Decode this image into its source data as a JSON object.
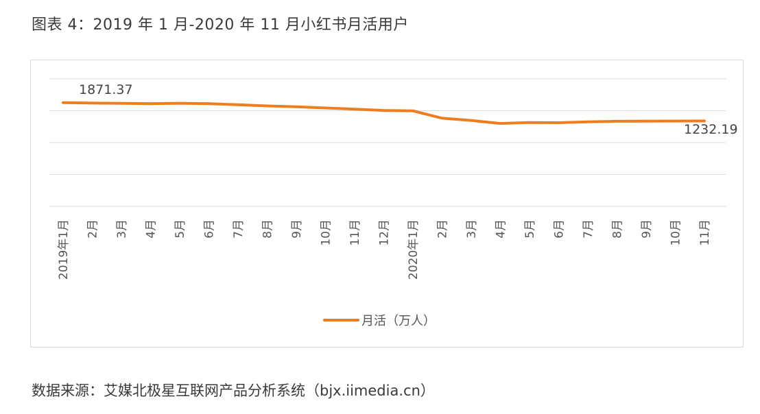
{
  "title": "图表 4：2019 年 1 月-2020 年 11 月小红书月活用户",
  "source": "数据来源：艾媒北极星互联网产品分析系统（bjx.iimedia.cn）",
  "chart_data": {
    "type": "line",
    "categories": [
      "2019年1月",
      "2月",
      "3月",
      "4月",
      "5月",
      "6月",
      "7月",
      "8月",
      "9月",
      "10月",
      "11月",
      "12月",
      "2020年1月",
      "2月",
      "3月",
      "4月",
      "5月",
      "6月",
      "7月",
      "8月",
      "9月",
      "10月",
      "11月"
    ],
    "series": [
      {
        "name": "月活（万人）",
        "color": "#ee7d1f",
        "values": [
          1871.37,
          1862,
          1858,
          1852,
          1860,
          1852,
          1832,
          1812,
          1796,
          1774,
          1754,
          1730,
          1722,
          1590,
          1550,
          1495,
          1512,
          1508,
          1523,
          1534,
          1536,
          1538,
          1232.19
        ]
      }
    ],
    "data_labels": [
      {
        "index": 0,
        "text": "1871.37"
      },
      {
        "index": 22,
        "text": "1232.19"
      }
    ],
    "ylim": [
      0,
      2300
    ],
    "grid": true,
    "legend": "bottom"
  }
}
